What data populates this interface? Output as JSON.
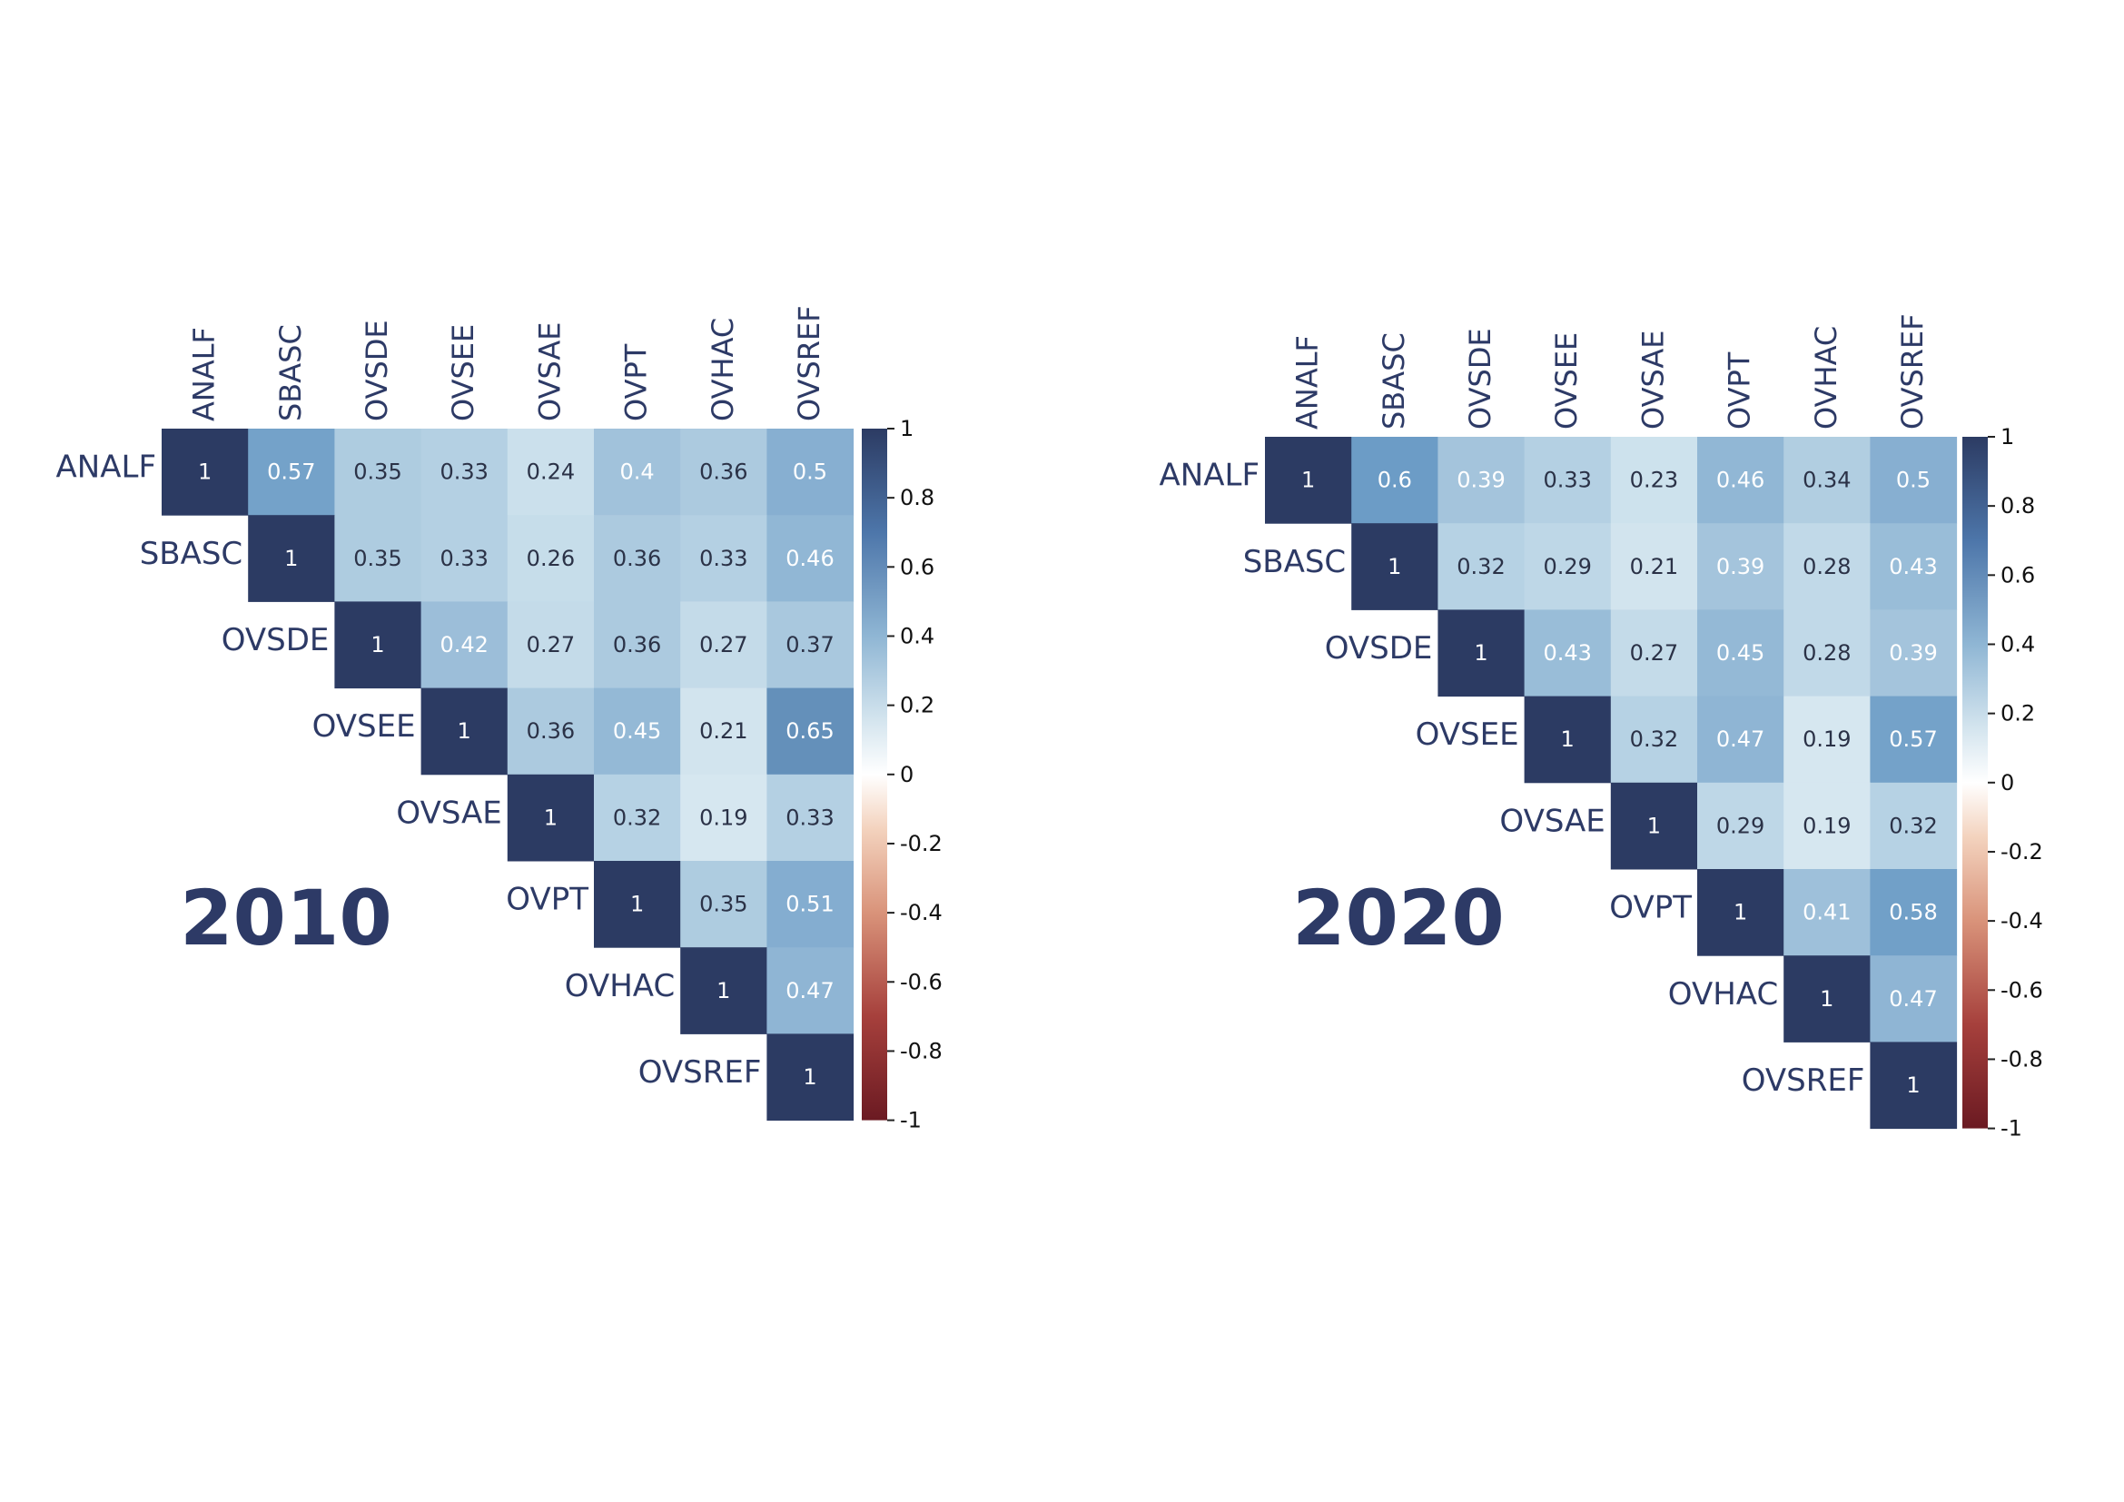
{
  "colors": {
    "label": "#2d3a66",
    "positive_max": "#2c3b63",
    "positive_mid": "#6c9cc6",
    "positive_low": "#c9dfeb",
    "neutral": "#ffffff",
    "negative_low": "#f0c4a8",
    "negative_mid": "#c2674e",
    "negative_max": "#6b1a22"
  },
  "chart_data": [
    {
      "type": "heatmap",
      "title": "2010",
      "variables": [
        "ANALF",
        "SBASC",
        "OVSDE",
        "OVSEE",
        "OVSAE",
        "OVPT",
        "OVHAC",
        "OVSREF"
      ],
      "matrix": [
        [
          1,
          0.57,
          0.35,
          0.33,
          0.24,
          0.4,
          0.36,
          0.5
        ],
        [
          null,
          1,
          0.35,
          0.33,
          0.26,
          0.36,
          0.33,
          0.46
        ],
        [
          null,
          null,
          1,
          0.42,
          0.27,
          0.36,
          0.27,
          0.37
        ],
        [
          null,
          null,
          null,
          1,
          0.36,
          0.45,
          0.21,
          0.65
        ],
        [
          null,
          null,
          null,
          null,
          1,
          0.32,
          0.19,
          0.33
        ],
        [
          null,
          null,
          null,
          null,
          null,
          1,
          0.35,
          0.51
        ],
        [
          null,
          null,
          null,
          null,
          null,
          null,
          1,
          0.47
        ],
        [
          null,
          null,
          null,
          null,
          null,
          null,
          null,
          1
        ]
      ],
      "colorbar": {
        "range": [
          -1,
          1
        ],
        "ticks": [
          "1",
          "0.8",
          "0.6",
          "0.4",
          "0.2",
          "0",
          "-0.2",
          "-0.4",
          "-0.6",
          "-0.8",
          "-1"
        ]
      }
    },
    {
      "type": "heatmap",
      "title": "2020",
      "variables": [
        "ANALF",
        "SBASC",
        "OVSDE",
        "OVSEE",
        "OVSAE",
        "OVPT",
        "OVHAC",
        "OVSREF"
      ],
      "matrix": [
        [
          1,
          0.6,
          0.39,
          0.33,
          0.23,
          0.46,
          0.34,
          0.5
        ],
        [
          null,
          1,
          0.32,
          0.29,
          0.21,
          0.39,
          0.28,
          0.43
        ],
        [
          null,
          null,
          1,
          0.43,
          0.27,
          0.45,
          0.28,
          0.39
        ],
        [
          null,
          null,
          null,
          1,
          0.32,
          0.47,
          0.19,
          0.57
        ],
        [
          null,
          null,
          null,
          null,
          1,
          0.29,
          0.19,
          0.32
        ],
        [
          null,
          null,
          null,
          null,
          null,
          1,
          0.41,
          0.58
        ],
        [
          null,
          null,
          null,
          null,
          null,
          null,
          1,
          0.47
        ],
        [
          null,
          null,
          null,
          null,
          null,
          null,
          null,
          1
        ]
      ],
      "colorbar": {
        "range": [
          -1,
          1
        ],
        "ticks": [
          "1",
          "0.8",
          "0.6",
          "0.4",
          "0.2",
          "0",
          "-0.2",
          "-0.4",
          "-0.6",
          "-0.8",
          "-1"
        ]
      }
    }
  ]
}
